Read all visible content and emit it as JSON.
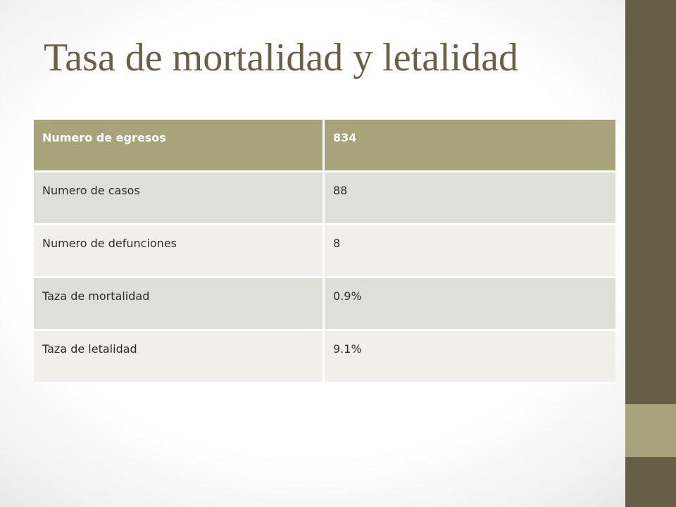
{
  "slide": {
    "title": "Tasa de mortalidad y letalidad"
  },
  "table": {
    "header": {
      "label": "Numero de egresos",
      "value": "834"
    },
    "rows": [
      {
        "label": "Numero de casos",
        "value": "88"
      },
      {
        "label": "Numero de defunciones",
        "value": "8"
      },
      {
        "label": "Taza de mortalidad",
        "value": "0.9%"
      },
      {
        "label": "Taza de letalidad",
        "value": "9.1%"
      }
    ]
  },
  "theme": {
    "title_color": "#6a6048",
    "accent_dark": "#675e48",
    "accent_light": "#a8a37b",
    "row_band_a": "#dfdfd9",
    "row_band_b": "#f0efeb"
  }
}
